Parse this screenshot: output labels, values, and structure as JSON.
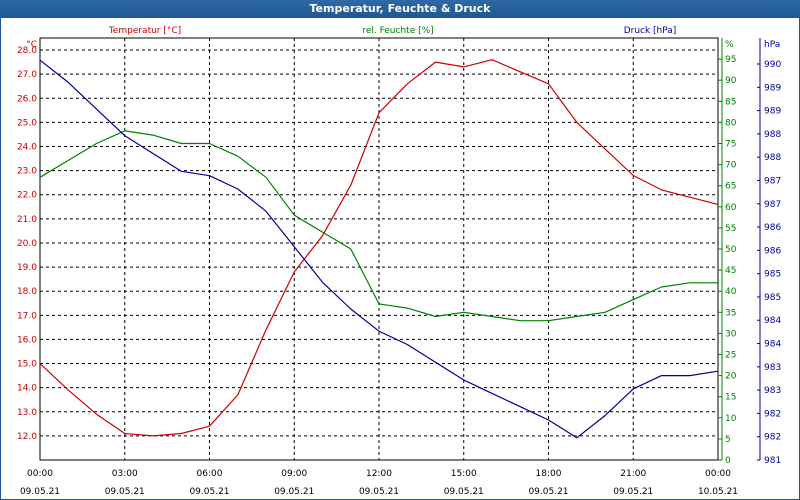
{
  "window": {
    "title": "Temperatur, Feuchte & Druck"
  },
  "chart_data": {
    "type": "line",
    "title": "Temperatur, Feuchte & Druck",
    "grid": true,
    "legend": "top-center",
    "colors": {
      "temperature": "#cc0000",
      "humidity": "#008000",
      "pressure": "#000099"
    },
    "x_ticks": [
      {
        "time": "00:00",
        "date": "09.05.21"
      },
      {
        "time": "03:00",
        "date": "09.05.21"
      },
      {
        "time": "06:00",
        "date": "09.05.21"
      },
      {
        "time": "09:00",
        "date": "09.05.21"
      },
      {
        "time": "12:00",
        "date": "09.05.21"
      },
      {
        "time": "15:00",
        "date": "09.05.21"
      },
      {
        "time": "18:00",
        "date": "09.05.21"
      },
      {
        "time": "21:00",
        "date": "09.05.21"
      },
      {
        "time": "00:00",
        "date": "10.05.21"
      }
    ],
    "x_range": [
      "09.05.21 00:00",
      "10.05.21 00:00"
    ],
    "axes": {
      "temperature": {
        "label": "Temperatur [°C]",
        "unit": "°C",
        "ylim": [
          11.0,
          28.5
        ],
        "ticks": [
          "12.0",
          "13.0",
          "14.0",
          "15.0",
          "16.0",
          "17.0",
          "18.0",
          "19.0",
          "20.0",
          "21.0",
          "22.0",
          "23.0",
          "24.0",
          "25.0",
          "26.0",
          "27.0",
          "28.0"
        ]
      },
      "humidity": {
        "label": "rel. Feuchte [%]",
        "unit": "%",
        "ylim": [
          0,
          100
        ],
        "ticks": [
          "0",
          "5",
          "10",
          "15",
          "20",
          "25",
          "30",
          "35",
          "40",
          "45",
          "50",
          "55",
          "60",
          "65",
          "70",
          "75",
          "80",
          "85",
          "90",
          "95",
          "%"
        ]
      },
      "pressure": {
        "label": "Druck [hPa]",
        "unit": "hPa",
        "ylim": [
          981,
          990.5
        ],
        "ticks": [
          "981",
          "982",
          "982",
          "983",
          "983",
          "984",
          "984",
          "985",
          "985",
          "986",
          "986",
          "987",
          "987",
          "988",
          "988",
          "989",
          "989",
          "990",
          "hPa"
        ]
      }
    },
    "series": [
      {
        "name": "Temperatur [°C]",
        "axis": "temperature",
        "x": [
          "09.05.21 00:00",
          "09.05.21 01:00",
          "09.05.21 02:00",
          "09.05.21 03:00",
          "09.05.21 04:00",
          "09.05.21 05:00",
          "09.05.21 06:00",
          "09.05.21 07:00",
          "09.05.21 08:00",
          "09.05.21 09:00",
          "09.05.21 10:00",
          "09.05.21 11:00",
          "09.05.21 12:00",
          "09.05.21 13:00",
          "09.05.21 14:00",
          "09.05.21 15:00",
          "09.05.21 16:00",
          "09.05.21 17:00",
          "09.05.21 18:00",
          "09.05.21 19:00",
          "09.05.21 20:00",
          "09.05.21 21:00",
          "09.05.21 22:00",
          "09.05.21 23:00",
          "10.05.21 00:00"
        ],
        "values": [
          15.0,
          13.9,
          12.9,
          12.1,
          12.0,
          12.1,
          12.4,
          13.7,
          16.4,
          18.8,
          20.3,
          22.4,
          25.4,
          26.6,
          27.5,
          27.3,
          27.6,
          27.1,
          26.6,
          25.0,
          23.9,
          22.8,
          22.2,
          21.9,
          21.6
        ]
      },
      {
        "name": "rel. Feuchte [%]",
        "axis": "humidity",
        "x": [
          "09.05.21 00:00",
          "09.05.21 01:00",
          "09.05.21 02:00",
          "09.05.21 03:00",
          "09.05.21 04:00",
          "09.05.21 05:00",
          "09.05.21 06:00",
          "09.05.21 07:00",
          "09.05.21 08:00",
          "09.05.21 09:00",
          "09.05.21 10:00",
          "09.05.21 11:00",
          "09.05.21 12:00",
          "09.05.21 13:00",
          "09.05.21 14:00",
          "09.05.21 15:00",
          "09.05.21 16:00",
          "09.05.21 17:00",
          "09.05.21 18:00",
          "09.05.21 19:00",
          "09.05.21 20:00",
          "09.05.21 21:00",
          "09.05.21 22:00",
          "09.05.21 23:00",
          "10.05.21 00:00"
        ],
        "values": [
          67,
          71,
          75,
          78,
          77,
          75,
          75,
          72,
          67,
          58,
          54,
          50,
          37,
          36,
          34,
          35,
          34,
          33,
          33,
          34,
          35,
          38,
          41,
          42,
          42
        ]
      },
      {
        "name": "Druck [hPa]",
        "axis": "pressure",
        "x": [
          "09.05.21 00:00",
          "09.05.21 01:00",
          "09.05.21 02:00",
          "09.05.21 03:00",
          "09.05.21 04:00",
          "09.05.21 05:00",
          "09.05.21 06:00",
          "09.05.21 07:00",
          "09.05.21 08:00",
          "09.05.21 09:00",
          "09.05.21 10:00",
          "09.05.21 11:00",
          "09.05.21 12:00",
          "09.05.21 13:00",
          "09.05.21 14:00",
          "09.05.21 15:00",
          "09.05.21 16:00",
          "09.05.21 17:00",
          "09.05.21 18:00",
          "09.05.21 19:00",
          "09.05.21 20:00",
          "09.05.21 21:00",
          "09.05.21 22:00",
          "09.05.21 23:00",
          "10.05.21 00:00"
        ],
        "values": [
          990.0,
          989.5,
          988.9,
          988.3,
          987.9,
          987.5,
          987.4,
          987.1,
          986.6,
          985.8,
          985.0,
          984.4,
          983.9,
          983.6,
          983.2,
          982.8,
          982.5,
          982.2,
          981.9,
          981.5,
          982.0,
          982.6,
          982.9,
          982.9,
          983.0
        ]
      }
    ]
  }
}
